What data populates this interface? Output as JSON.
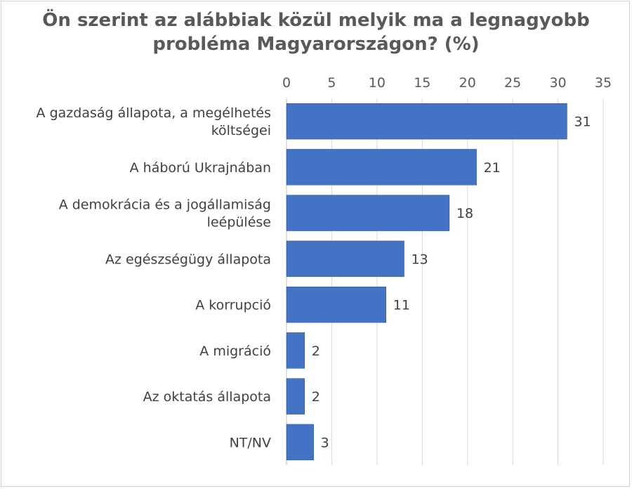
{
  "chart_data": {
    "type": "bar",
    "orientation": "horizontal",
    "title": "Ön szerint az alábbiak közül melyik ma a legnagyobb probléma Magyarországon? (%)",
    "title_lines": [
      "Ön szerint az alábbiak közül melyik ma a legnagyobb",
      "probléma Magyarországon? (%)"
    ],
    "categories": [
      "A gazdaság állapota, a megélhetés költségei",
      "A háború Ukrajnában",
      "A demokrácia és a jogállamiság leépülése",
      "Az egészségügy állapota",
      "A korrupció",
      "A migráció",
      "Az oktatás állapota",
      "NT/NV"
    ],
    "category_lines": [
      [
        "A gazdaság állapota, a megélhetés",
        "költségei"
      ],
      [
        "A háború Ukrajnában"
      ],
      [
        "A demokrácia és a jogállamiság",
        "leépülése"
      ],
      [
        "Az egészségügy állapota"
      ],
      [
        "A korrupció"
      ],
      [
        "A migráció"
      ],
      [
        "Az oktatás állapota"
      ],
      [
        "NT/NV"
      ]
    ],
    "values": [
      31,
      21,
      18,
      13,
      11,
      2,
      2,
      3
    ],
    "xlim": [
      0,
      35
    ],
    "xticks": [
      0,
      5,
      10,
      15,
      20,
      25,
      30,
      35
    ],
    "xaxis_position": "top",
    "data_labels": true,
    "grid": true,
    "bar_color": "#4472c4"
  }
}
